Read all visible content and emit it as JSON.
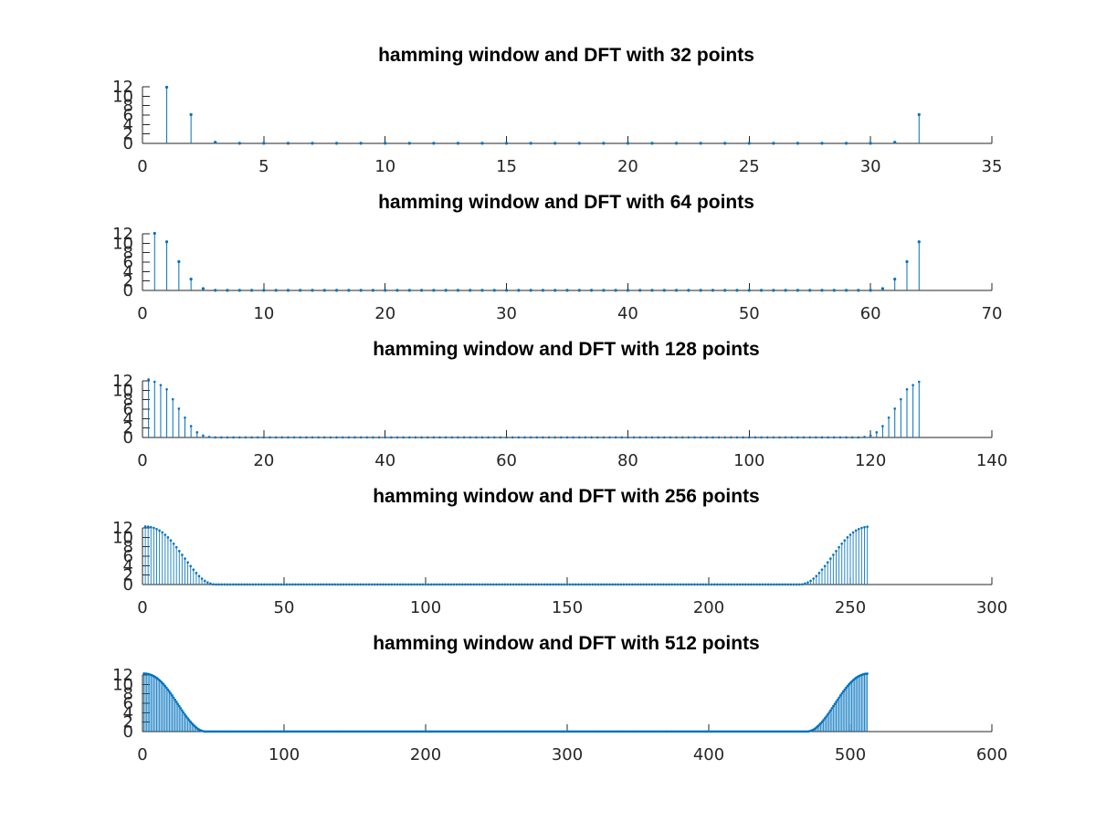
{
  "series_color": "#0072bd",
  "chart_data": [
    {
      "type": "stem",
      "title": "hamming window and DFT with 32 points",
      "n": 32,
      "xlim": [
        0,
        35
      ],
      "ylim": [
        0,
        12
      ],
      "xticks": [
        0,
        5,
        10,
        15,
        20,
        25,
        30,
        35
      ],
      "yticks": [
        0,
        2,
        4,
        6,
        8,
        10,
        12
      ],
      "grid": false,
      "x": [
        1,
        2,
        3,
        4,
        5,
        6,
        7,
        8,
        9,
        10,
        11,
        12,
        13,
        14,
        15,
        16,
        17,
        18,
        19,
        20,
        21,
        22,
        23,
        24,
        25,
        26,
        27,
        28,
        29,
        30,
        31,
        32
      ],
      "values": [
        11.9,
        6.1,
        0.25,
        0.02,
        0.02,
        0.02,
        0.02,
        0.02,
        0.02,
        0.02,
        0.02,
        0.02,
        0.02,
        0.02,
        0.02,
        0.02,
        0.02,
        0.02,
        0.02,
        0.02,
        0.02,
        0.02,
        0.02,
        0.02,
        0.02,
        0.02,
        0.02,
        0.02,
        0.02,
        0.02,
        0.25,
        6.1
      ]
    },
    {
      "type": "stem",
      "title": "hamming window and DFT with 64 points",
      "n": 64,
      "xlim": [
        0,
        70
      ],
      "ylim": [
        0,
        12
      ],
      "xticks": [
        0,
        10,
        20,
        30,
        40,
        50,
        60,
        70
      ],
      "yticks": [
        0,
        2,
        4,
        6,
        8,
        10,
        12
      ],
      "grid": false,
      "x": [
        1,
        2,
        3,
        4,
        5,
        6,
        7,
        8,
        9,
        10,
        11,
        12,
        13,
        14,
        15,
        16,
        17,
        18,
        19,
        20,
        21,
        22,
        23,
        24,
        25,
        26,
        27,
        28,
        29,
        30,
        31,
        32,
        33,
        34,
        35,
        36,
        37,
        38,
        39,
        40,
        41,
        42,
        43,
        44,
        45,
        46,
        47,
        48,
        49,
        50,
        51,
        52,
        53,
        54,
        55,
        56,
        57,
        58,
        59,
        60,
        61,
        62,
        63,
        64
      ],
      "values": [
        12.1,
        10.3,
        6.1,
        2.4,
        0.4,
        0.02,
        0.02,
        0.02,
        0.02,
        0.02,
        0.02,
        0.02,
        0.02,
        0.02,
        0.02,
        0.02,
        0.02,
        0.02,
        0.02,
        0.02,
        0.02,
        0.02,
        0.02,
        0.02,
        0.02,
        0.02,
        0.02,
        0.02,
        0.02,
        0.02,
        0.02,
        0.02,
        0.02,
        0.02,
        0.02,
        0.02,
        0.02,
        0.02,
        0.02,
        0.02,
        0.02,
        0.02,
        0.02,
        0.02,
        0.02,
        0.02,
        0.02,
        0.02,
        0.02,
        0.02,
        0.02,
        0.02,
        0.02,
        0.02,
        0.02,
        0.02,
        0.02,
        0.02,
        0.02,
        0.02,
        0.4,
        2.4,
        6.1,
        10.3
      ]
    },
    {
      "type": "stem",
      "title": "hamming window and DFT with 128 points",
      "n": 128,
      "xlim": [
        0,
        140
      ],
      "ylim": [
        0,
        12
      ],
      "xticks": [
        0,
        20,
        40,
        60,
        80,
        100,
        120,
        140
      ],
      "yticks": [
        0,
        2,
        4,
        6,
        8,
        10,
        12
      ],
      "grid": false,
      "x": [
        1,
        2,
        3,
        4,
        5,
        6,
        7,
        8,
        9,
        10,
        11,
        12,
        13,
        14,
        15,
        16,
        17,
        18,
        19,
        20,
        21,
        22,
        23,
        24,
        25,
        26,
        27,
        28,
        29,
        30,
        31,
        32,
        33,
        34,
        35,
        36,
        37,
        38,
        39,
        40,
        41,
        42,
        43,
        44,
        45,
        46,
        47,
        48,
        49,
        50,
        51,
        52,
        53,
        54,
        55,
        56,
        57,
        58,
        59,
        60,
        61,
        62,
        63,
        64,
        65,
        66,
        67,
        68,
        69,
        70,
        71,
        72,
        73,
        74,
        75,
        76,
        77,
        78,
        79,
        80,
        81,
        82,
        83,
        84,
        85,
        86,
        87,
        88,
        89,
        90,
        91,
        92,
        93,
        94,
        95,
        96,
        97,
        98,
        99,
        100,
        101,
        102,
        103,
        104,
        105,
        106,
        107,
        108,
        109,
        110,
        111,
        112,
        113,
        114,
        115,
        116,
        117,
        118,
        119,
        120,
        121,
        122,
        123,
        124,
        125,
        126,
        127,
        128
      ],
      "values": [
        12.3,
        11.8,
        11.1,
        10.2,
        8.1,
        6.1,
        4.2,
        2.4,
        1.1,
        0.4,
        0.1,
        0.02,
        0.02,
        0.02,
        0.02,
        0.02,
        0.02,
        0.02,
        0.02,
        0.02,
        0.02,
        0.02,
        0.02,
        0.02,
        0.02,
        0.02,
        0.02,
        0.02,
        0.02,
        0.02,
        0.02,
        0.02,
        0.02,
        0.02,
        0.02,
        0.02,
        0.02,
        0.02,
        0.02,
        0.02,
        0.02,
        0.02,
        0.02,
        0.02,
        0.02,
        0.02,
        0.02,
        0.02,
        0.02,
        0.02,
        0.02,
        0.02,
        0.02,
        0.02,
        0.02,
        0.02,
        0.02,
        0.02,
        0.02,
        0.02,
        0.02,
        0.02,
        0.02,
        0.02,
        0.02,
        0.02,
        0.02,
        0.02,
        0.02,
        0.02,
        0.02,
        0.02,
        0.02,
        0.02,
        0.02,
        0.02,
        0.02,
        0.02,
        0.02,
        0.02,
        0.02,
        0.02,
        0.02,
        0.02,
        0.02,
        0.02,
        0.02,
        0.02,
        0.02,
        0.02,
        0.02,
        0.02,
        0.02,
        0.02,
        0.02,
        0.02,
        0.02,
        0.02,
        0.02,
        0.02,
        0.02,
        0.02,
        0.02,
        0.02,
        0.02,
        0.02,
        0.02,
        0.02,
        0.02,
        0.02,
        0.02,
        0.02,
        0.02,
        0.02,
        0.02,
        0.02,
        0.02,
        0.02,
        0.1,
        0.4,
        1.1,
        2.4,
        4.2,
        6.1,
        8.1,
        10.2,
        11.1,
        11.8
      ]
    },
    {
      "type": "stem",
      "title": "hamming window and DFT with 256 points",
      "n": 256,
      "xlim": [
        0,
        300
      ],
      "ylim": [
        0,
        12
      ],
      "xticks": [
        0,
        50,
        100,
        150,
        200,
        250,
        300
      ],
      "yticks": [
        0,
        2,
        4,
        6,
        8,
        10,
        12
      ],
      "grid": false,
      "profile": "Hamming-window DFT magnitude: ~12.3 at k=1, smooth roll-off to ~0 by k≈22, near-zero floor, symmetric rise from k≈236 back to ~12.3 at k=256",
      "values": [
        12.3,
        12.25,
        12.15,
        12.0,
        11.75,
        11.45,
        11.05,
        10.55,
        10.0,
        9.35,
        8.65,
        7.9,
        7.1,
        6.3,
        5.5,
        4.7,
        3.9,
        3.15,
        2.45,
        1.8,
        1.25,
        0.8,
        0.45,
        0.2,
        0.05
      ]
    },
    {
      "type": "stem",
      "title": "hamming window and DFT with 512 points",
      "n": 512,
      "xlim": [
        0,
        600
      ],
      "ylim": [
        0,
        12
      ],
      "xticks": [
        0,
        100,
        200,
        300,
        400,
        500,
        600
      ],
      "yticks": [
        0,
        2,
        4,
        6,
        8,
        10,
        12
      ],
      "grid": false,
      "profile": "Hamming-window DFT magnitude: ~12.3 at k=1, smooth roll-off to ~0 by k≈45, near-zero floor, symmetric rise from k≈470 back to ~12.3 at k=512",
      "values": [
        12.3,
        12.28,
        12.25,
        12.2,
        12.12,
        12.02,
        11.9,
        11.75,
        11.58,
        11.38,
        11.15,
        10.9,
        10.62,
        10.32,
        10.0,
        9.65,
        9.28,
        8.9,
        8.5,
        8.08,
        7.65,
        7.2,
        6.75,
        6.3,
        5.85,
        5.4,
        4.95,
        4.5,
        4.06,
        3.63,
        3.22,
        2.82,
        2.44,
        2.08,
        1.74,
        1.42,
        1.13,
        0.86,
        0.63,
        0.43,
        0.27,
        0.15,
        0.07,
        0.02
      ]
    }
  ]
}
